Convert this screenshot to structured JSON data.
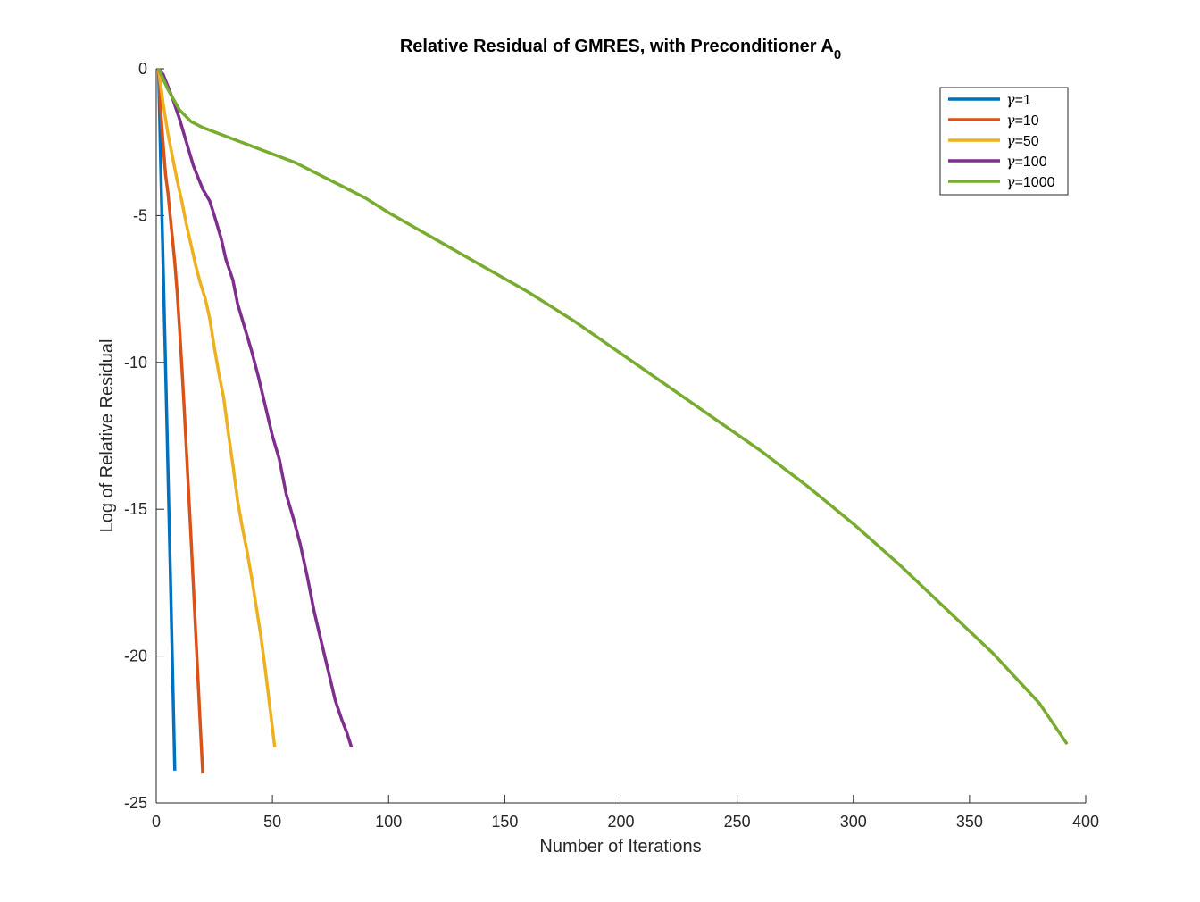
{
  "chart_data": {
    "type": "line",
    "title": "Relative Residual of GMRES, with Preconditioner A",
    "title_subscript": "0",
    "xlabel": "Number of Iterations",
    "ylabel": "Log of Relative Residual",
    "xlim": [
      0,
      400
    ],
    "ylim": [
      -25,
      0
    ],
    "xticks": [
      0,
      50,
      100,
      150,
      200,
      250,
      300,
      350,
      400
    ],
    "yticks": [
      0,
      -5,
      -10,
      -15,
      -20,
      -25
    ],
    "grid": false,
    "legend_position": "top-right",
    "series": [
      {
        "name": "γ=1",
        "legend_symbol": "γ",
        "legend_value": "=1",
        "color": "#0072BD",
        "points": [
          [
            1,
            0
          ],
          [
            2,
            -3.5
          ],
          [
            3,
            -6.8
          ],
          [
            4,
            -10.1
          ],
          [
            5,
            -13.5
          ],
          [
            6,
            -16.9
          ],
          [
            7,
            -20.4
          ],
          [
            8,
            -23.9
          ]
        ]
      },
      {
        "name": "γ=10",
        "legend_symbol": "γ",
        "legend_value": "=10",
        "color": "#D95319",
        "points": [
          [
            1,
            0
          ],
          [
            2,
            -1.5
          ],
          [
            3,
            -2.6
          ],
          [
            4,
            -3.6
          ],
          [
            5,
            -4.2
          ],
          [
            6,
            -5.0
          ],
          [
            7,
            -5.8
          ],
          [
            8,
            -6.6
          ],
          [
            9,
            -7.6
          ],
          [
            10,
            -8.8
          ],
          [
            11,
            -10.1
          ],
          [
            12,
            -11.5
          ],
          [
            13,
            -13.0
          ],
          [
            14,
            -14.5
          ],
          [
            15,
            -16.0
          ],
          [
            16,
            -17.6
          ],
          [
            17,
            -19.2
          ],
          [
            18,
            -20.8
          ],
          [
            19,
            -22.4
          ],
          [
            20,
            -24.0
          ]
        ]
      },
      {
        "name": "γ=50",
        "legend_symbol": "γ",
        "legend_value": "=50",
        "color": "#EDB120",
        "points": [
          [
            1,
            0
          ],
          [
            3,
            -1.2
          ],
          [
            5,
            -2.2
          ],
          [
            7,
            -3.0
          ],
          [
            9,
            -3.8
          ],
          [
            11,
            -4.5
          ],
          [
            13,
            -5.3
          ],
          [
            15,
            -6.0
          ],
          [
            17,
            -6.7
          ],
          [
            19,
            -7.3
          ],
          [
            21,
            -7.8
          ],
          [
            23,
            -8.5
          ],
          [
            25,
            -9.5
          ],
          [
            27,
            -10.4
          ],
          [
            29,
            -11.2
          ],
          [
            31,
            -12.4
          ],
          [
            33,
            -13.5
          ],
          [
            35,
            -14.7
          ],
          [
            37,
            -15.6
          ],
          [
            39,
            -16.4
          ],
          [
            41,
            -17.3
          ],
          [
            43,
            -18.3
          ],
          [
            45,
            -19.3
          ],
          [
            47,
            -20.5
          ],
          [
            49,
            -21.8
          ],
          [
            51,
            -23.1
          ]
        ]
      },
      {
        "name": "γ=100",
        "legend_symbol": "γ",
        "legend_value": "=100",
        "color": "#7E2F8E",
        "points": [
          [
            1,
            0
          ],
          [
            3,
            -0.2
          ],
          [
            5,
            -0.6
          ],
          [
            7,
            -1.0
          ],
          [
            10,
            -1.7
          ],
          [
            13,
            -2.5
          ],
          [
            16,
            -3.3
          ],
          [
            20,
            -4.1
          ],
          [
            23,
            -4.5
          ],
          [
            25,
            -5.0
          ],
          [
            28,
            -5.8
          ],
          [
            30,
            -6.5
          ],
          [
            33,
            -7.2
          ],
          [
            35,
            -8.0
          ],
          [
            38,
            -8.8
          ],
          [
            41,
            -9.6
          ],
          [
            44,
            -10.5
          ],
          [
            47,
            -11.5
          ],
          [
            50,
            -12.5
          ],
          [
            53,
            -13.3
          ],
          [
            56,
            -14.5
          ],
          [
            59,
            -15.3
          ],
          [
            62,
            -16.2
          ],
          [
            65,
            -17.3
          ],
          [
            68,
            -18.5
          ],
          [
            71,
            -19.5
          ],
          [
            74,
            -20.5
          ],
          [
            77,
            -21.5
          ],
          [
            80,
            -22.2
          ],
          [
            82,
            -22.6
          ],
          [
            84,
            -23.1
          ]
        ]
      },
      {
        "name": "γ=1000",
        "legend_symbol": "γ",
        "legend_value": "=1000",
        "color": "#77AC30",
        "points": [
          [
            1,
            0
          ],
          [
            5,
            -0.7
          ],
          [
            10,
            -1.4
          ],
          [
            15,
            -1.8
          ],
          [
            20,
            -2.0
          ],
          [
            30,
            -2.3
          ],
          [
            40,
            -2.6
          ],
          [
            50,
            -2.9
          ],
          [
            60,
            -3.2
          ],
          [
            70,
            -3.6
          ],
          [
            80,
            -4.0
          ],
          [
            90,
            -4.4
          ],
          [
            100,
            -4.9
          ],
          [
            120,
            -5.8
          ],
          [
            140,
            -6.7
          ],
          [
            160,
            -7.6
          ],
          [
            180,
            -8.6
          ],
          [
            200,
            -9.7
          ],
          [
            220,
            -10.8
          ],
          [
            240,
            -11.9
          ],
          [
            260,
            -13.0
          ],
          [
            280,
            -14.2
          ],
          [
            300,
            -15.5
          ],
          [
            320,
            -16.9
          ],
          [
            340,
            -18.4
          ],
          [
            360,
            -19.9
          ],
          [
            380,
            -21.6
          ],
          [
            392,
            -23.0
          ]
        ]
      }
    ]
  }
}
